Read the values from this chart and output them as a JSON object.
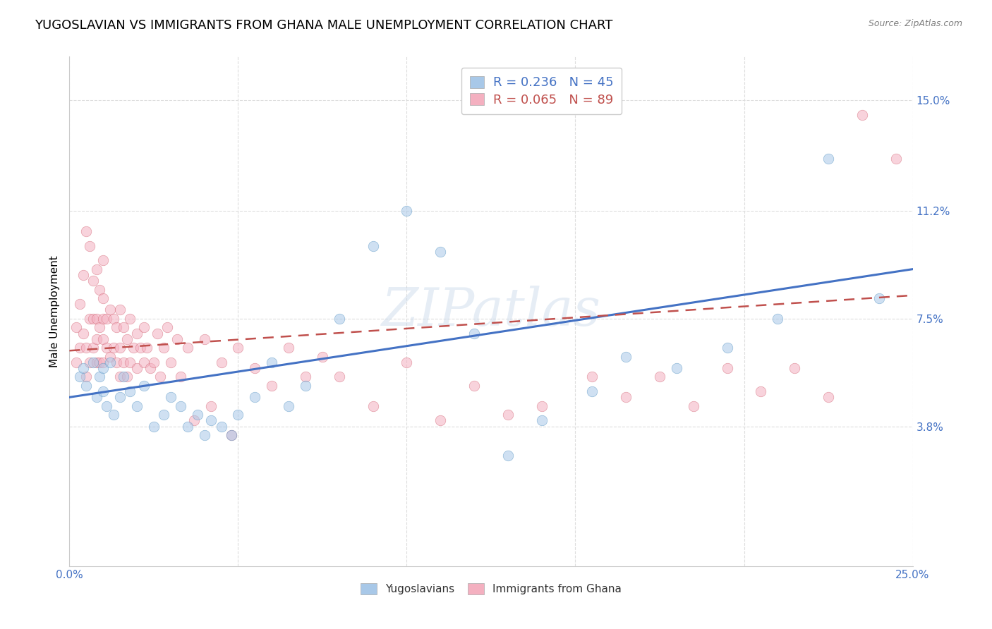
{
  "title": "YUGOSLAVIAN VS IMMIGRANTS FROM GHANA MALE UNEMPLOYMENT CORRELATION CHART",
  "source": "Source: ZipAtlas.com",
  "ylabel": "Male Unemployment",
  "xlim": [
    0.0,
    0.25
  ],
  "ylim": [
    -0.01,
    0.165
  ],
  "yticks": [
    0.038,
    0.075,
    0.112,
    0.15
  ],
  "ytick_labels": [
    "3.8%",
    "7.5%",
    "11.2%",
    "15.0%"
  ],
  "xticks": [
    0.0,
    0.05,
    0.1,
    0.15,
    0.2,
    0.25
  ],
  "xtick_labels": [
    "0.0%",
    "",
    "",
    "",
    "",
    "25.0%"
  ],
  "watermark": "ZIPatlas",
  "blue_scatter_x": [
    0.003,
    0.004,
    0.005,
    0.007,
    0.008,
    0.009,
    0.01,
    0.01,
    0.011,
    0.012,
    0.013,
    0.015,
    0.016,
    0.018,
    0.02,
    0.022,
    0.025,
    0.028,
    0.03,
    0.033,
    0.035,
    0.038,
    0.04,
    0.042,
    0.045,
    0.048,
    0.05,
    0.055,
    0.06,
    0.065,
    0.07,
    0.08,
    0.09,
    0.1,
    0.11,
    0.12,
    0.13,
    0.14,
    0.155,
    0.165,
    0.18,
    0.195,
    0.21,
    0.225,
    0.24
  ],
  "blue_scatter_y": [
    0.055,
    0.058,
    0.052,
    0.06,
    0.048,
    0.055,
    0.05,
    0.058,
    0.045,
    0.06,
    0.042,
    0.048,
    0.055,
    0.05,
    0.045,
    0.052,
    0.038,
    0.042,
    0.048,
    0.045,
    0.038,
    0.042,
    0.035,
    0.04,
    0.038,
    0.035,
    0.042,
    0.048,
    0.06,
    0.045,
    0.052,
    0.075,
    0.1,
    0.112,
    0.098,
    0.07,
    0.028,
    0.04,
    0.05,
    0.062,
    0.058,
    0.065,
    0.075,
    0.13,
    0.082
  ],
  "pink_scatter_x": [
    0.002,
    0.002,
    0.003,
    0.003,
    0.004,
    0.004,
    0.005,
    0.005,
    0.005,
    0.006,
    0.006,
    0.006,
    0.007,
    0.007,
    0.007,
    0.008,
    0.008,
    0.008,
    0.008,
    0.009,
    0.009,
    0.009,
    0.01,
    0.01,
    0.01,
    0.01,
    0.01,
    0.011,
    0.011,
    0.012,
    0.012,
    0.013,
    0.013,
    0.014,
    0.014,
    0.015,
    0.015,
    0.015,
    0.016,
    0.016,
    0.017,
    0.017,
    0.018,
    0.018,
    0.019,
    0.02,
    0.02,
    0.021,
    0.022,
    0.022,
    0.023,
    0.024,
    0.025,
    0.026,
    0.027,
    0.028,
    0.029,
    0.03,
    0.032,
    0.033,
    0.035,
    0.037,
    0.04,
    0.042,
    0.045,
    0.048,
    0.05,
    0.055,
    0.06,
    0.065,
    0.07,
    0.075,
    0.08,
    0.09,
    0.1,
    0.11,
    0.12,
    0.13,
    0.14,
    0.155,
    0.165,
    0.175,
    0.185,
    0.195,
    0.205,
    0.215,
    0.225,
    0.235,
    0.245
  ],
  "pink_scatter_y": [
    0.06,
    0.072,
    0.065,
    0.08,
    0.07,
    0.09,
    0.055,
    0.065,
    0.105,
    0.06,
    0.075,
    0.1,
    0.065,
    0.075,
    0.088,
    0.06,
    0.068,
    0.075,
    0.092,
    0.06,
    0.072,
    0.085,
    0.06,
    0.068,
    0.075,
    0.082,
    0.095,
    0.065,
    0.075,
    0.062,
    0.078,
    0.065,
    0.075,
    0.06,
    0.072,
    0.055,
    0.065,
    0.078,
    0.06,
    0.072,
    0.055,
    0.068,
    0.06,
    0.075,
    0.065,
    0.058,
    0.07,
    0.065,
    0.06,
    0.072,
    0.065,
    0.058,
    0.06,
    0.07,
    0.055,
    0.065,
    0.072,
    0.06,
    0.068,
    0.055,
    0.065,
    0.04,
    0.068,
    0.045,
    0.06,
    0.035,
    0.065,
    0.058,
    0.052,
    0.065,
    0.055,
    0.062,
    0.055,
    0.045,
    0.06,
    0.04,
    0.052,
    0.042,
    0.045,
    0.055,
    0.048,
    0.055,
    0.045,
    0.058,
    0.05,
    0.058,
    0.048,
    0.145,
    0.13
  ],
  "blue_line_x": [
    0.0,
    0.25
  ],
  "blue_line_y": [
    0.048,
    0.092
  ],
  "pink_line_x": [
    0.0,
    0.25
  ],
  "pink_line_y": [
    0.064,
    0.083
  ],
  "scatter_size": 110,
  "scatter_alpha": 0.55,
  "blue_color": "#a8c8e8",
  "pink_color": "#f4b0c0",
  "blue_edge_color": "#5090c0",
  "pink_edge_color": "#d06070",
  "background_color": "#ffffff",
  "grid_color": "#dddddd",
  "title_fontsize": 13,
  "axis_label_fontsize": 11,
  "tick_fontsize": 11,
  "legend_fontsize": 12
}
